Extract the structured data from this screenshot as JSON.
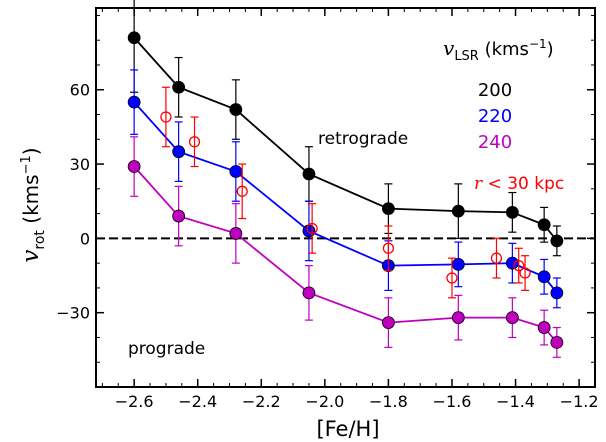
{
  "chart_data": {
    "type": "scatter",
    "xlabel": "[Fe/H]",
    "ylabel_symbol": "v",
    "ylabel_sub": "rot",
    "ylabel_units": "(kms",
    "ylabel_units_exp": "−1",
    "ylabel_close": ")",
    "xlim": [
      -2.72,
      -1.15
    ],
    "ylim": [
      -60,
      93
    ],
    "xticks": [
      -2.6,
      -2.4,
      -2.2,
      -2.0,
      -1.8,
      -1.6,
      -1.4,
      -1.2
    ],
    "xtick_labels": [
      "−2.6",
      "−2.4",
      "−2.2",
      "−2.0",
      "−1.8",
      "−1.6",
      "−1.4",
      "−1.2"
    ],
    "yticks": [
      60,
      30,
      0,
      -30
    ],
    "ytick_labels": [
      "60",
      "30",
      "0",
      "−30"
    ],
    "zero_line": true,
    "legend": {
      "title_symbol": "v",
      "title_sub": "LSR",
      "title_units": "(kms",
      "title_units_exp": "−1",
      "title_close": ")",
      "entries": [
        {
          "label": "200",
          "color": "#000000"
        },
        {
          "label": "220",
          "color": "#0000ff"
        },
        {
          "label": "240",
          "color": "#bf00bf"
        }
      ],
      "extra_symbol": "r",
      "extra_text": "< 30 kpc",
      "extra_color": "#ff0000"
    },
    "annotations": {
      "retrograde": "retrograde",
      "prograde": "prograde"
    },
    "series": [
      {
        "name": "200",
        "color": "#000000",
        "marker": "filled",
        "connected": true,
        "x": [
          -2.6,
          -2.46,
          -2.28,
          -2.05,
          -1.8,
          -1.58,
          -1.41,
          -1.31,
          -1.27
        ],
        "y": [
          81,
          61,
          52,
          26,
          12,
          11,
          10.5,
          5.5,
          -1
        ],
        "err": [
          22,
          12,
          12,
          11,
          10,
          11,
          8,
          7,
          6
        ]
      },
      {
        "name": "220",
        "color": "#0000ff",
        "marker": "filled",
        "connected": true,
        "x": [
          -2.6,
          -2.46,
          -2.28,
          -2.05,
          -1.8,
          -1.58,
          -1.41,
          -1.31,
          -1.27
        ],
        "y": [
          55,
          35,
          27,
          3,
          -11,
          -10.5,
          -10,
          -15.5,
          -22
        ],
        "err": [
          13,
          12,
          12,
          12,
          10,
          9,
          8,
          7,
          6
        ]
      },
      {
        "name": "240",
        "color": "#bf00bf",
        "marker": "filled",
        "connected": true,
        "x": [
          -2.6,
          -2.46,
          -2.28,
          -2.05,
          -1.8,
          -1.58,
          -1.41,
          -1.31,
          -1.27
        ],
        "y": [
          29,
          9,
          2,
          -22,
          -34,
          -32,
          -32,
          -36,
          -42
        ],
        "err": [
          12,
          12,
          12,
          11,
          10,
          9,
          8,
          7,
          6
        ]
      },
      {
        "name": "r < 30 kpc",
        "color": "#ff0000",
        "marker": "open",
        "connected": false,
        "x": [
          -2.5,
          -2.41,
          -2.26,
          -2.04,
          -1.8,
          -1.6,
          -1.46,
          -1.39,
          -1.37
        ],
        "y": [
          49,
          39,
          19,
          4,
          -4,
          -16,
          -8,
          -11,
          -14
        ],
        "err": [
          12,
          10,
          11,
          10,
          9,
          8,
          8,
          7,
          7
        ]
      }
    ]
  }
}
